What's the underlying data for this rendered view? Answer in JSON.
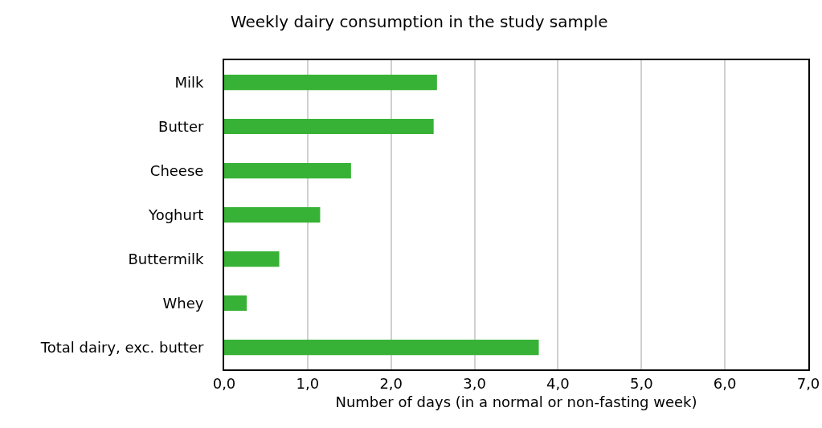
{
  "chart_data": {
    "type": "bar",
    "orientation": "horizontal",
    "title": "Weekly dairy consumption in the study sample",
    "xlabel": "Number of days (in a normal or non-fasting week)",
    "categories": [
      "Milk",
      "Butter",
      "Cheese",
      "Yoghurt",
      "Buttermilk",
      "Whey",
      "Total dairy, exc. butter"
    ],
    "values": [
      2.55,
      2.51,
      1.52,
      1.15,
      0.66,
      0.27,
      3.77
    ],
    "color": "#38b236",
    "xlim": [
      0,
      7
    ],
    "xticks": [
      {
        "value": 0,
        "label": "0,0"
      },
      {
        "value": 1,
        "label": "1,0"
      },
      {
        "value": 2,
        "label": "2,0"
      },
      {
        "value": 3,
        "label": "3,0"
      },
      {
        "value": 4,
        "label": "4,0"
      },
      {
        "value": 5,
        "label": "5,0"
      },
      {
        "value": 6,
        "label": "6,0"
      },
      {
        "value": 7,
        "label": "7,0"
      }
    ],
    "grid": "x",
    "legend": false
  }
}
